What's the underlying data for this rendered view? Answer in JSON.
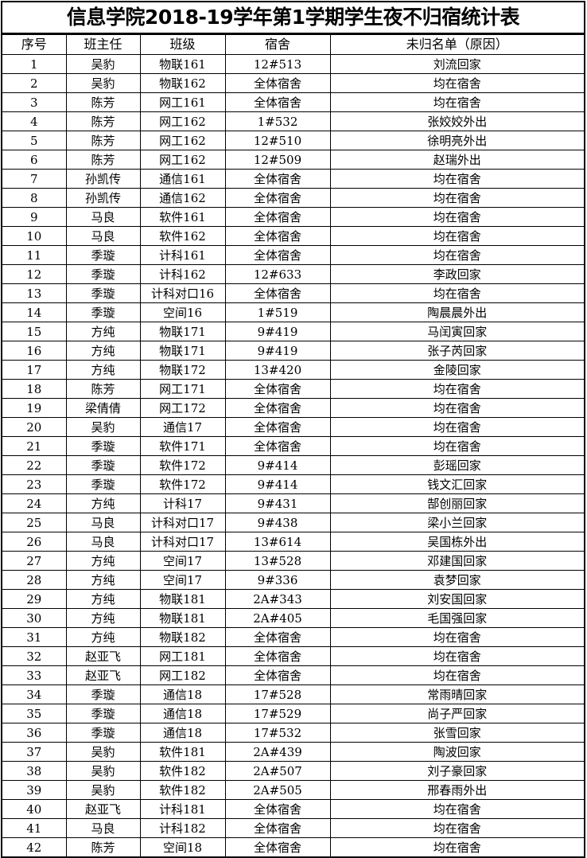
{
  "title": "信息学院2018-19学年第1学期学生夜不归宿统计表",
  "headers": [
    "序号",
    "班主任",
    "班级",
    "宿舍",
    "未归名单（原因）"
  ],
  "rows": [
    [
      "1",
      "吴豹",
      "物联161",
      "12#513",
      "刘流回家"
    ],
    [
      "2",
      "吴豹",
      "物联162",
      "全体宿舍",
      "均在宿舍"
    ],
    [
      "3",
      "陈芳",
      "网工161",
      "全体宿舍",
      "均在宿舍"
    ],
    [
      "4",
      "陈芳",
      "网工162",
      "1#532",
      "张姣姣外出"
    ],
    [
      "5",
      "陈芳",
      "网工162",
      "12#510",
      "徐明亮外出"
    ],
    [
      "6",
      "陈芳",
      "网工162",
      "12#509",
      "赵瑞外出"
    ],
    [
      "7",
      "孙凯传",
      "通信161",
      "全体宿舍",
      "均在宿舍"
    ],
    [
      "8",
      "孙凯传",
      "通信162",
      "全体宿舍",
      "均在宿舍"
    ],
    [
      "9",
      "马良",
      "软件161",
      "全体宿舍",
      "均在宿舍"
    ],
    [
      "10",
      "马良",
      "软件162",
      "全体宿舍",
      "均在宿舍"
    ],
    [
      "11",
      "季璇",
      "计科161",
      "全体宿舍",
      "均在宿舍"
    ],
    [
      "12",
      "季璇",
      "计科162",
      "12#633",
      "李政回家"
    ],
    [
      "13",
      "季璇",
      "计科对口16",
      "全体宿舍",
      "均在宿舍"
    ],
    [
      "14",
      "季璇",
      "空间16",
      "1#519",
      "陶晨晨外出"
    ],
    [
      "15",
      "方纯",
      "物联171",
      "9#419",
      "马闰寅回家"
    ],
    [
      "16",
      "方纯",
      "物联171",
      "9#419",
      "张子芮回家"
    ],
    [
      "17",
      "方纯",
      "物联172",
      "13#420",
      "金陵回家"
    ],
    [
      "18",
      "陈芳",
      "网工171",
      "全体宿舍",
      "均在宿舍"
    ],
    [
      "19",
      "梁倩倩",
      "网工172",
      "全体宿舍",
      "均在宿舍"
    ],
    [
      "20",
      "吴豹",
      "通信17",
      "全体宿舍",
      "均在宿舍"
    ],
    [
      "21",
      "季璇",
      "软件171",
      "全体宿舍",
      "均在宿舍"
    ],
    [
      "22",
      "季璇",
      "软件172",
      "9#414",
      "彭瑶回家"
    ],
    [
      "23",
      "季璇",
      "软件172",
      "9#414",
      "钱文汇回家"
    ],
    [
      "24",
      "方纯",
      "计科17",
      "9#431",
      "郜创丽回家"
    ],
    [
      "25",
      "马良",
      "计科对口17",
      "9#438",
      "梁小兰回家"
    ],
    [
      "26",
      "马良",
      "计科对口17",
      "13#614",
      "吴国栋外出"
    ],
    [
      "27",
      "方纯",
      "空间17",
      "13#528",
      "邓建国回家"
    ],
    [
      "28",
      "方纯",
      "空间17",
      "9#336",
      "袁梦回家"
    ],
    [
      "29",
      "方纯",
      "物联181",
      "2A#343",
      "刘安国回家"
    ],
    [
      "30",
      "方纯",
      "物联181",
      "2A#405",
      "毛国强回家"
    ],
    [
      "31",
      "方纯",
      "物联182",
      "全体宿舍",
      "均在宿舍"
    ],
    [
      "32",
      "赵亚飞",
      "网工181",
      "全体宿舍",
      "均在宿舍"
    ],
    [
      "33",
      "赵亚飞",
      "网工182",
      "全体宿舍",
      "均在宿舍"
    ],
    [
      "34",
      "季璇",
      "通信18",
      "17#528",
      "常雨晴回家"
    ],
    [
      "35",
      "季璇",
      "通信18",
      "17#529",
      "尚子严回家"
    ],
    [
      "36",
      "季璇",
      "通信18",
      "17#532",
      "张雪回家"
    ],
    [
      "37",
      "吴豹",
      "软件181",
      "2A#439",
      "陶波回家"
    ],
    [
      "38",
      "吴豹",
      "软件182",
      "2A#507",
      "刘子豪回家"
    ],
    [
      "39",
      "吴豹",
      "软件182",
      "2A#505",
      "邢春雨外出"
    ],
    [
      "40",
      "赵亚飞",
      "计科181",
      "全体宿舍",
      "均在宿舍"
    ],
    [
      "41",
      "马良",
      "计科182",
      "全体宿舍",
      "均在宿舍"
    ],
    [
      "42",
      "陈芳",
      "空间18",
      "全体宿舍",
      "均在宿舍"
    ]
  ]
}
